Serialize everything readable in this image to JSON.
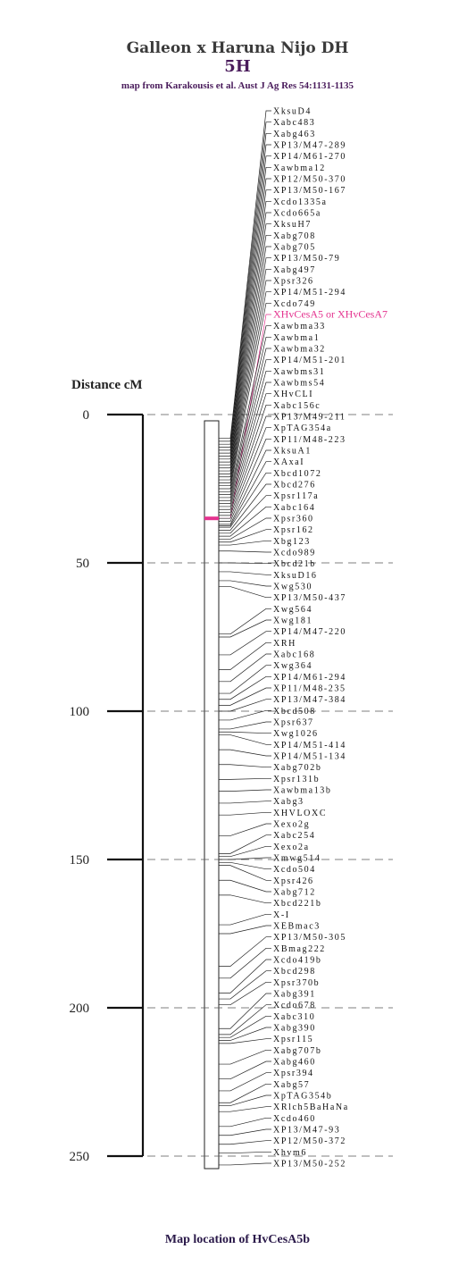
{
  "header": {
    "title": "Galleon x Haruna Nijo  DH",
    "chromosome": "5H",
    "source": "map from Karakousis et al. Aust J Ag Res 54:1131-1135"
  },
  "axis": {
    "label": "Distance  cM",
    "ticks": [
      0,
      50,
      100,
      150,
      200,
      250
    ]
  },
  "highlight": {
    "marker": "XHvCesA5 or XHvCesA7",
    "position_cm": 35,
    "color": "#e4338f"
  },
  "chart_data": {
    "type": "genetic-map",
    "title": "Galleon x Haruna Nijo  DH",
    "ylabel": "Distance  cM",
    "ylim": [
      0,
      250
    ],
    "chromosome_end_cm": 254,
    "markers": [
      {
        "name": "XksuD4",
        "cm": 8
      },
      {
        "name": "Xabc483",
        "cm": 9
      },
      {
        "name": "Xabg463",
        "cm": 10
      },
      {
        "name": "XP13/M47-289",
        "cm": 11
      },
      {
        "name": "XP14/M61-270",
        "cm": 12
      },
      {
        "name": "Xawbma12",
        "cm": 13
      },
      {
        "name": "XP12/M50-370",
        "cm": 14
      },
      {
        "name": "XP13/M50-167",
        "cm": 15
      },
      {
        "name": "Xcdo1335a",
        "cm": 16
      },
      {
        "name": "Xcdo665a",
        "cm": 17
      },
      {
        "name": "XksuH7",
        "cm": 18
      },
      {
        "name": "Xabg708",
        "cm": 19
      },
      {
        "name": "Xabg705",
        "cm": 20
      },
      {
        "name": "XP13/M50-79",
        "cm": 21
      },
      {
        "name": "Xabg497",
        "cm": 22
      },
      {
        "name": "Xpsr326",
        "cm": 23
      },
      {
        "name": "XP14/M51-294",
        "cm": 24
      },
      {
        "name": "Xcdo749",
        "cm": 25
      },
      {
        "name": "XHvCesA5 or XHvCesA7",
        "cm": 35
      },
      {
        "name": "Xawbma33",
        "cm": 26
      },
      {
        "name": "Xawbma1",
        "cm": 27
      },
      {
        "name": "Xawbma32",
        "cm": 28
      },
      {
        "name": "XP14/M51-201",
        "cm": 29
      },
      {
        "name": "Xawbms31",
        "cm": 30
      },
      {
        "name": "Xawbms54",
        "cm": 31
      },
      {
        "name": "XHvCLI",
        "cm": 32
      },
      {
        "name": "Xabc156c",
        "cm": 33
      },
      {
        "name": "XP13/M49-211",
        "cm": 34
      },
      {
        "name": "XpTAG354a",
        "cm": 35
      },
      {
        "name": "XP11/M48-223",
        "cm": 36
      },
      {
        "name": "XksuA1",
        "cm": 37
      },
      {
        "name": "XAxaI",
        "cm": 37.5
      },
      {
        "name": "Xbcd1072",
        "cm": 38
      },
      {
        "name": "Xbcd276",
        "cm": 39
      },
      {
        "name": "Xpsr117a",
        "cm": 40
      },
      {
        "name": "Xabc164",
        "cm": 41
      },
      {
        "name": "Xpsr360",
        "cm": 42
      },
      {
        "name": "Xpsr162",
        "cm": 43
      },
      {
        "name": "Xbg123",
        "cm": 44
      },
      {
        "name": "Xcdo989",
        "cm": 46
      },
      {
        "name": "Xbcd21b",
        "cm": 50
      },
      {
        "name": "XksuD16",
        "cm": 53
      },
      {
        "name": "Xwg530",
        "cm": 56
      },
      {
        "name": "XP13/M50-437",
        "cm": 58
      },
      {
        "name": "Xwg564",
        "cm": 74
      },
      {
        "name": "Xwg181",
        "cm": 75
      },
      {
        "name": "XP14/M47-220",
        "cm": 81
      },
      {
        "name": "XRH",
        "cm": 86
      },
      {
        "name": "Xabc168",
        "cm": 90
      },
      {
        "name": "Xwg364",
        "cm": 94
      },
      {
        "name": "XP14/M61-294",
        "cm": 96
      },
      {
        "name": "XP11/M48-235",
        "cm": 98
      },
      {
        "name": "XP13/M47-384",
        "cm": 100
      },
      {
        "name": "Xbcd508",
        "cm": 103
      },
      {
        "name": "Xpsr637",
        "cm": 106
      },
      {
        "name": "Xwg1026",
        "cm": 107
      },
      {
        "name": "XP14/M51-414",
        "cm": 108
      },
      {
        "name": "XP14/M51-134",
        "cm": 113
      },
      {
        "name": "Xabg702b",
        "cm": 118
      },
      {
        "name": "Xpsr131b",
        "cm": 123
      },
      {
        "name": "Xawbma13b",
        "cm": 127
      },
      {
        "name": "Xabg3",
        "cm": 131
      },
      {
        "name": "XHVLOXC",
        "cm": 135
      },
      {
        "name": "Xexo2g",
        "cm": 142
      },
      {
        "name": "Xabc254",
        "cm": 148
      },
      {
        "name": "Xexo2a",
        "cm": 149
      },
      {
        "name": "Xmwg514",
        "cm": 150
      },
      {
        "name": "Xcdo504",
        "cm": 151
      },
      {
        "name": "Xpsr426",
        "cm": 152
      },
      {
        "name": "Xabg712",
        "cm": 157
      },
      {
        "name": "Xbcd221b",
        "cm": 162
      },
      {
        "name": "X-I",
        "cm": 172
      },
      {
        "name": "XEBmac3",
        "cm": 175
      },
      {
        "name": "XP13/M50-305",
        "cm": 186
      },
      {
        "name": "XBmag222",
        "cm": 190
      },
      {
        "name": "Xcdo419b",
        "cm": 195
      },
      {
        "name": "Xbcd298",
        "cm": 197
      },
      {
        "name": "Xpsr370b",
        "cm": 199
      },
      {
        "name": "Xabg391",
        "cm": 207
      },
      {
        "name": "Xcdo678",
        "cm": 209
      },
      {
        "name": "Xabc310",
        "cm": 210
      },
      {
        "name": "Xabg390",
        "cm": 211
      },
      {
        "name": "Xpsr115",
        "cm": 212
      },
      {
        "name": "Xabg707b",
        "cm": 219
      },
      {
        "name": "Xabg460",
        "cm": 224
      },
      {
        "name": "Xpsr394",
        "cm": 228
      },
      {
        "name": "Xabg57",
        "cm": 232
      },
      {
        "name": "XpTAG354b",
        "cm": 233
      },
      {
        "name": "XRlch5BaHaNa",
        "cm": 235
      },
      {
        "name": "Xcdo460",
        "cm": 240
      },
      {
        "name": "XP13/M47-93",
        "cm": 243
      },
      {
        "name": "XP12/M50-372",
        "cm": 246
      },
      {
        "name": "Xhvm6",
        "cm": 249
      },
      {
        "name": "XP13/M50-252",
        "cm": 253
      }
    ]
  },
  "footer": {
    "caption": "Map location of HvCesA5b"
  }
}
